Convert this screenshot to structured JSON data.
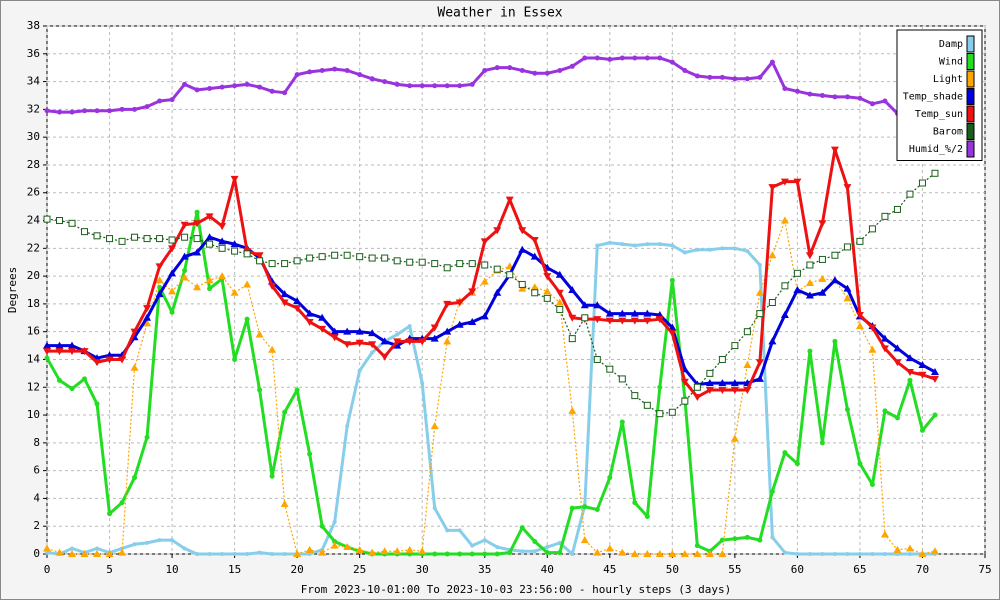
{
  "chart_data": {
    "type": "line",
    "title": "Weather in Essex",
    "x_label": "From 2023-10-01:00 To 2023-10-03 23:56:00 - hourly steps (3 days)",
    "y_label": "Degrees",
    "x": [
      0,
      1,
      2,
      3,
      4,
      5,
      6,
      7,
      8,
      9,
      10,
      11,
      12,
      13,
      14,
      15,
      16,
      17,
      18,
      19,
      20,
      21,
      22,
      23,
      24,
      25,
      26,
      27,
      28,
      29,
      30,
      31,
      32,
      33,
      34,
      35,
      36,
      37,
      38,
      39,
      40,
      41,
      42,
      43,
      44,
      45,
      46,
      47,
      48,
      49,
      50,
      51,
      52,
      53,
      54,
      55,
      56,
      57,
      58,
      59,
      60,
      61,
      62,
      63,
      64,
      65,
      66,
      67,
      68,
      69,
      70,
      71
    ],
    "xlim": [
      0,
      75
    ],
    "xticks": [
      0,
      5,
      10,
      15,
      20,
      25,
      30,
      35,
      40,
      45,
      50,
      55,
      60,
      65,
      70,
      75
    ],
    "ylim": [
      0,
      38
    ],
    "yticks": [
      0,
      2,
      4,
      6,
      8,
      10,
      12,
      14,
      16,
      18,
      20,
      22,
      24,
      26,
      28,
      30,
      32,
      34,
      36,
      38
    ],
    "grid": true,
    "legend": "upper right",
    "series": [
      {
        "name": "Damp",
        "color": "#87ceeb",
        "values": [
          0.1,
          0,
          0.4,
          0.1,
          0.4,
          0.1,
          0.4,
          0.7,
          0.8,
          1,
          1,
          0.4,
          0,
          0,
          0,
          0,
          0,
          0.1,
          0,
          0,
          0,
          0,
          0.3,
          2.3,
          9.2,
          13.2,
          14.5,
          15.3,
          15.8,
          16.4,
          12.3,
          3.3,
          1.7,
          1.7,
          0.6,
          1,
          0.5,
          0.3,
          0.2,
          0.2,
          0.5,
          0.8,
          0,
          3.5,
          22.2,
          22.4,
          22.3,
          22.2,
          22.3,
          22.3,
          22.2,
          21.7,
          21.9,
          21.9,
          22,
          22,
          21.8,
          20.8,
          1.2,
          0.1,
          0,
          0,
          0,
          0,
          0,
          0,
          0,
          0,
          0,
          0,
          0,
          0
        ]
      },
      {
        "name": "Wind",
        "color": "#22dd22",
        "values": [
          14.1,
          12.5,
          11.9,
          12.6,
          10.8,
          2.9,
          3.7,
          5.5,
          8.4,
          19.2,
          17.4,
          20.4,
          24.6,
          19.1,
          19.8,
          14,
          16.9,
          11.8,
          5.6,
          10.2,
          11.8,
          7.2,
          2,
          0.9,
          0.5,
          0.2,
          0,
          0,
          0,
          0,
          0,
          0,
          0,
          0,
          0,
          0,
          0,
          0.1,
          1.9,
          0.9,
          0.1,
          0.1,
          3.3,
          3.4,
          3.2,
          5.5,
          9.5,
          3.7,
          2.7,
          12,
          19.7,
          11.2,
          0.6,
          0.2,
          1,
          1.1,
          1.2,
          1,
          4.5,
          7.3,
          6.5,
          14.6,
          8,
          15.3,
          10.4,
          6.5,
          5,
          10.3,
          9.8,
          12.5,
          8.9,
          10
        ]
      },
      {
        "name": "Light",
        "color": "#ffa500",
        "values": [
          0.4,
          0.1,
          0,
          0,
          0,
          0,
          0.1,
          13.4,
          16.6,
          19.7,
          18.9,
          19.9,
          19.2,
          19.7,
          20,
          18.8,
          19.4,
          15.8,
          14.7,
          3.6,
          0,
          0.3,
          0.1,
          0.6,
          0.5,
          0.3,
          0.1,
          0.2,
          0.2,
          0.3,
          0.2,
          9.2,
          15.3,
          18.2,
          18.8,
          19.6,
          20.4,
          20.7,
          19.1,
          19.2,
          18.9,
          18.1,
          10.3,
          1,
          0.1,
          0.4,
          0.1,
          0,
          0,
          0,
          0,
          0,
          0,
          0,
          0,
          8.3,
          13.6,
          18.8,
          21.5,
          24,
          18.9,
          19.5,
          19.8,
          19.7,
          18.4,
          16.4,
          14.7,
          1.4,
          0.3,
          0.4,
          0,
          0.2
        ]
      },
      {
        "name": "Temp_shade",
        "color": "#0000dd",
        "values": [
          15,
          15,
          15,
          14.6,
          14.1,
          14.3,
          14.3,
          15.6,
          17,
          18.7,
          20.2,
          21.4,
          21.7,
          22.8,
          22.5,
          22.3,
          22,
          21.3,
          19.6,
          18.7,
          18.2,
          17.3,
          17,
          16,
          16,
          16,
          15.9,
          15.3,
          15,
          15.5,
          15.5,
          15.5,
          16,
          16.5,
          16.7,
          17.1,
          18.8,
          20.1,
          21.9,
          21.4,
          20.6,
          20.1,
          19,
          17.9,
          17.9,
          17.3,
          17.3,
          17.3,
          17.3,
          17.2,
          16.3,
          13.3,
          12.2,
          12.3,
          12.3,
          12.3,
          12.3,
          12.6,
          15.3,
          17.2,
          19,
          18.6,
          18.8,
          19.7,
          19.1,
          17.1,
          16.4,
          15.5,
          14.8,
          14.1,
          13.6,
          13.1
        ]
      },
      {
        "name": "Temp_sun",
        "color": "#ee1111",
        "values": [
          14.6,
          14.6,
          14.6,
          14.6,
          13.8,
          14,
          14,
          16,
          17.7,
          20.7,
          22,
          23.7,
          23.8,
          24.3,
          23.6,
          27,
          21.8,
          21.5,
          19.3,
          18.1,
          17.7,
          16.7,
          16.2,
          15.6,
          15.1,
          15.2,
          15.1,
          14.2,
          15.3,
          15.3,
          15.3,
          16.3,
          18,
          18.1,
          18.9,
          22.5,
          23.3,
          25.5,
          23.3,
          22.6,
          20,
          18.8,
          17,
          16.9,
          16.9,
          16.8,
          16.8,
          16.8,
          16.8,
          16.9,
          15.9,
          12.4,
          11.3,
          11.8,
          11.8,
          11.8,
          11.8,
          13.8,
          26.4,
          26.8,
          26.8,
          21.5,
          23.8,
          29.1,
          26.4,
          17.2,
          16.3,
          14.8,
          13.8,
          13.1,
          12.9,
          12.6
        ]
      },
      {
        "name": "Barom",
        "color": "#1a5e1a",
        "values": [
          24.1,
          24,
          23.8,
          23.2,
          22.9,
          22.7,
          22.5,
          22.8,
          22.7,
          22.7,
          22.6,
          22.8,
          22.7,
          22.3,
          22,
          21.8,
          21.6,
          21.1,
          20.9,
          20.9,
          21.1,
          21.3,
          21.4,
          21.5,
          21.5,
          21.4,
          21.3,
          21.3,
          21.1,
          21,
          21,
          20.9,
          20.6,
          20.9,
          20.9,
          20.8,
          20.5,
          20.1,
          19.4,
          18.8,
          18.4,
          17.6,
          15.5,
          17,
          14,
          13.3,
          12.6,
          11.4,
          10.7,
          10.1,
          10.2,
          11,
          12,
          13,
          14,
          15,
          16,
          17.3,
          18.1,
          19.3,
          20.2,
          20.8,
          21.2,
          21.5,
          22.1,
          22.5,
          23.4,
          24.3,
          24.8,
          25.9,
          26.7,
          27.4
        ]
      },
      {
        "name": "Humid_%/2",
        "color": "#9933dd",
        "values": [
          31.9,
          31.8,
          31.8,
          31.9,
          31.9,
          31.9,
          32,
          32,
          32.2,
          32.6,
          32.7,
          33.8,
          33.4,
          33.5,
          33.6,
          33.7,
          33.8,
          33.6,
          33.3,
          33.2,
          34.5,
          34.7,
          34.8,
          34.9,
          34.8,
          34.5,
          34.2,
          34,
          33.8,
          33.7,
          33.7,
          33.7,
          33.7,
          33.7,
          33.8,
          34.8,
          35,
          35,
          34.8,
          34.6,
          34.6,
          34.8,
          35.1,
          35.7,
          35.7,
          35.6,
          35.7,
          35.7,
          35.7,
          35.7,
          35.4,
          34.8,
          34.4,
          34.3,
          34.3,
          34.2,
          34.2,
          34.3,
          35.4,
          33.5,
          33.3,
          33.1,
          33,
          32.9,
          32.9,
          32.8,
          32.4,
          32.6,
          31.7,
          null,
          null,
          null
        ]
      }
    ]
  }
}
